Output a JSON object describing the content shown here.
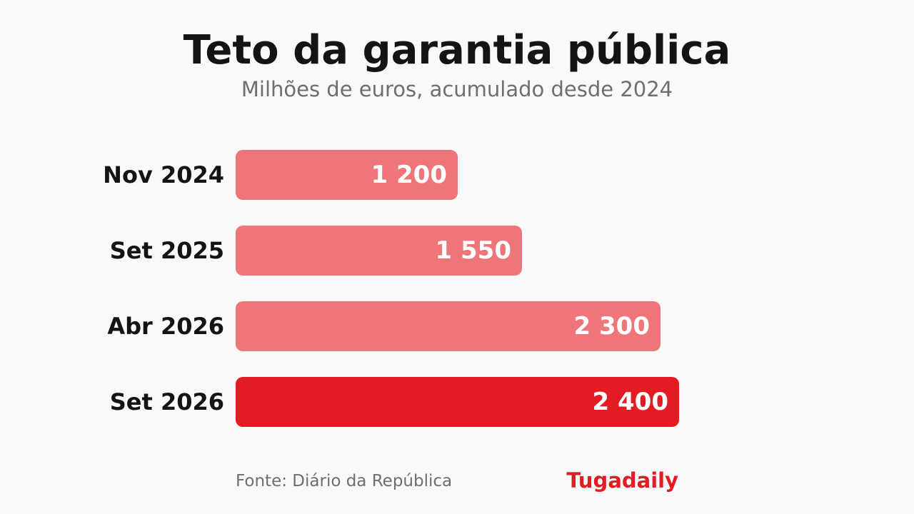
{
  "title": "Teto da garantia pública",
  "subtitle": "Milhões de euros, acumulado desde 2024",
  "source": "Fonte: Diário da República",
  "brand": "Tugadaily",
  "colors": {
    "bar": "#ee7679",
    "highlight": "#e31b23"
  },
  "chart_data": {
    "type": "bar",
    "orientation": "horizontal",
    "title": "Teto da garantia pública",
    "subtitle": "Milhões de euros, acumulado desde 2024",
    "categories": [
      "Nov 2024",
      "Set 2025",
      "Abr 2026",
      "Set 2026"
    ],
    "values": [
      1200,
      1550,
      2300,
      2400
    ],
    "value_labels": [
      "1 200",
      "1 550",
      "2 300",
      "2 400"
    ],
    "highlighted": "Set 2026",
    "grid": false
  }
}
